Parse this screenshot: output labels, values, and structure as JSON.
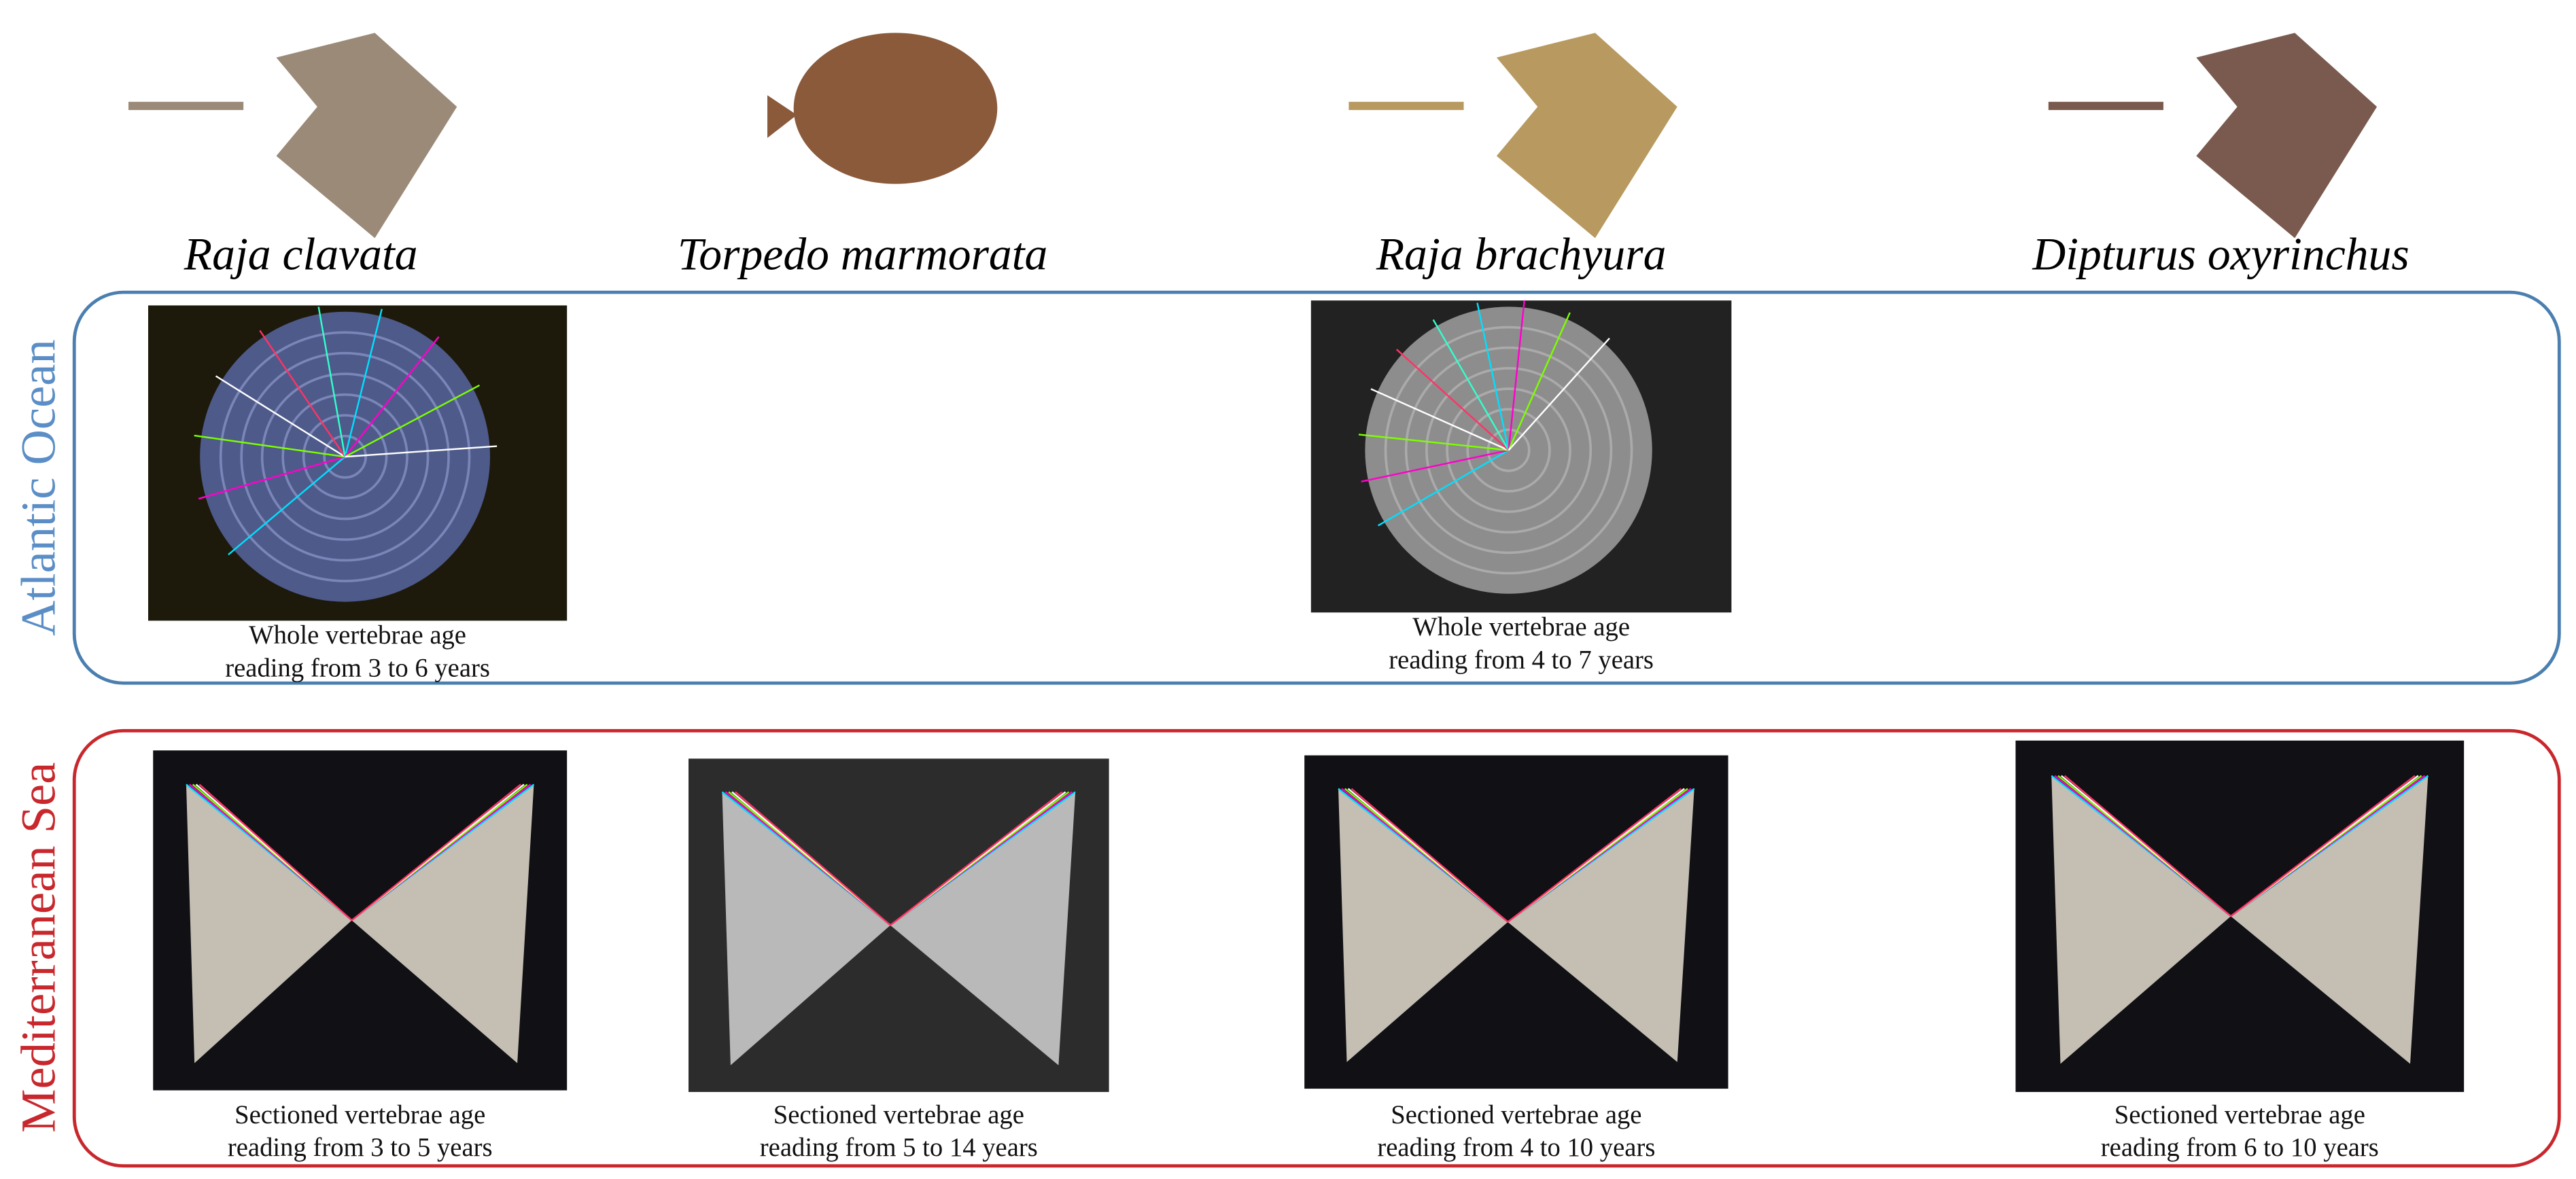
{
  "species": [
    "Raja clavata",
    "Torpedo marmorata",
    "Raja brachyura",
    "Dipturus oxyrinchus"
  ],
  "regions": [
    {
      "label": "Atlantic Ocean",
      "panels": [
        {
          "caption": [
            "Whole vertebrae age",
            "reading from 3 to 6 years"
          ]
        },
        {
          "caption": [
            "Whole vertebrae age",
            "reading from 4 to 7 years"
          ]
        }
      ]
    },
    {
      "label": "Mediterranean Sea",
      "panels": [
        {
          "caption": [
            "Sectioned vertebrae age",
            "reading from 3 to 5 years"
          ]
        },
        {
          "caption": [
            "Sectioned vertebrae age",
            "reading from 5 to 14 years"
          ]
        },
        {
          "caption": [
            "Sectioned vertebrae age",
            "reading from 4 to 10 years"
          ]
        },
        {
          "caption": [
            "Sectioned vertebrae age",
            "reading from 6 to 10 years"
          ]
        }
      ]
    }
  ]
}
